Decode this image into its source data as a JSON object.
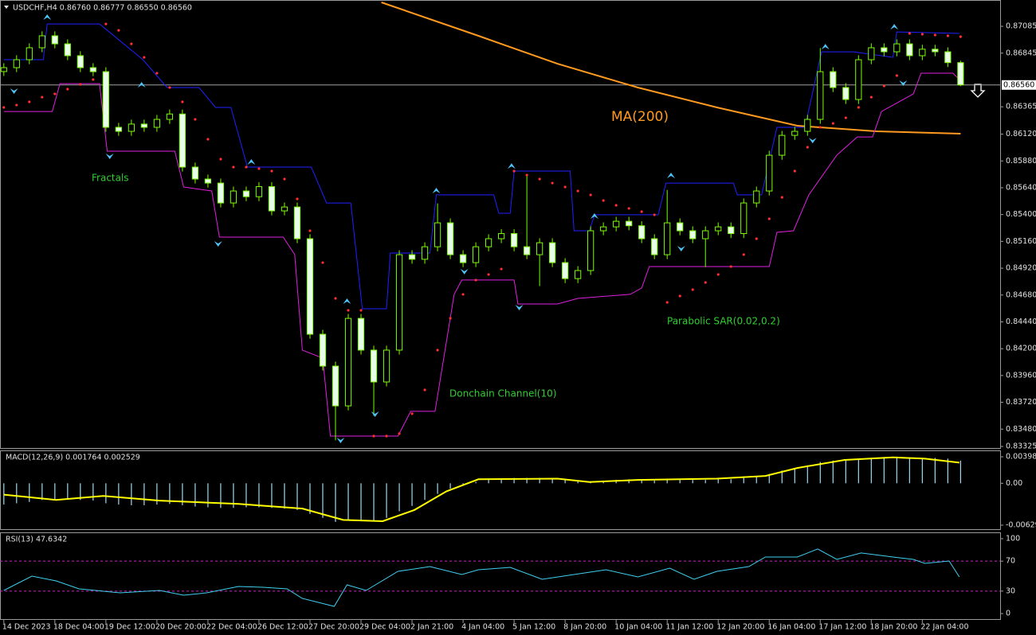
{
  "chart_data": [
    {
      "type": "candlestick",
      "title": "USDCHF,H4 0.86760 0.86777 0.86550 0.86560",
      "up_color": "#000000",
      "down_color": "#e6ffe6",
      "edge_color": "#7cfc00",
      "open": [
        0.8668,
        0.86715,
        0.86786,
        0.86893,
        0.87,
        0.86928,
        0.86822,
        0.86715,
        0.86679,
        0.86181,
        0.86145,
        0.8621,
        0.86181,
        0.86252,
        0.863,
        0.85825,
        0.85718,
        0.85682,
        0.85504,
        0.85611,
        0.8556,
        0.8565,
        0.85433,
        0.85468,
        0.85184,
        0.84329,
        0.84044,
        0.83688,
        0.84471,
        0.84187,
        0.83902,
        0.84187,
        0.85041,
        0.85,
        0.85112,
        0.85326,
        0.85041,
        0.8497,
        0.85112,
        0.85184,
        0.8523,
        0.85112,
        0.85041,
        0.85148,
        0.8497,
        0.84827,
        0.84899,
        0.85255,
        0.8529,
        0.8534,
        0.853,
        0.85184,
        0.85041,
        0.85326,
        0.85255,
        0.85184,
        0.85255,
        0.8529,
        0.8523,
        0.85504,
        0.85611,
        0.85931,
        0.86109,
        0.86145,
        0.86252,
        0.86679,
        0.86537,
        0.8643,
        0.86786,
        0.86893,
        0.86857,
        0.86928,
        0.86822,
        0.8688,
        0.86857,
        0.8676
      ],
      "high": [
        0.86755,
        0.86826,
        0.86933,
        0.8704,
        0.8704,
        0.86968,
        0.86862,
        0.86755,
        0.86719,
        0.86221,
        0.8625,
        0.8625,
        0.86292,
        0.8634,
        0.8634,
        0.85865,
        0.85758,
        0.85722,
        0.85651,
        0.85651,
        0.8569,
        0.8569,
        0.85508,
        0.85508,
        0.85224,
        0.84369,
        0.84084,
        0.84511,
        0.84511,
        0.84227,
        0.84227,
        0.85081,
        0.85081,
        0.85152,
        0.855,
        0.85366,
        0.85081,
        0.85152,
        0.85224,
        0.8527,
        0.8527,
        0.8575,
        0.85188,
        0.85188,
        0.8501,
        0.84939,
        0.85295,
        0.8533,
        0.8538,
        0.8538,
        0.8534,
        0.85224,
        0.8562,
        0.85366,
        0.85295,
        0.85295,
        0.8533,
        0.8533,
        0.85544,
        0.85651,
        0.85971,
        0.86149,
        0.86185,
        0.86292,
        0.8689,
        0.86719,
        0.86577,
        0.86826,
        0.86933,
        0.86933,
        0.86968,
        0.86968,
        0.8692,
        0.8692,
        0.86897,
        0.86777
      ],
      "low": [
        0.8664,
        0.86675,
        0.86746,
        0.86853,
        0.86888,
        0.86782,
        0.86675,
        0.86639,
        0.86141,
        0.86105,
        0.86105,
        0.86141,
        0.86141,
        0.86212,
        0.85785,
        0.85678,
        0.85642,
        0.85464,
        0.85464,
        0.8552,
        0.8552,
        0.85393,
        0.85393,
        0.85144,
        0.84289,
        0.84004,
        0.8338,
        0.83648,
        0.84147,
        0.836,
        0.83862,
        0.84147,
        0.8496,
        0.8496,
        0.85072,
        0.85001,
        0.8493,
        0.8493,
        0.85072,
        0.85144,
        0.85072,
        0.85001,
        0.8476,
        0.8493,
        0.84787,
        0.84787,
        0.84859,
        0.85215,
        0.8525,
        0.8526,
        0.85144,
        0.85001,
        0.85001,
        0.85215,
        0.85144,
        0.8493,
        0.85215,
        0.8519,
        0.8519,
        0.85464,
        0.85571,
        0.85891,
        0.86069,
        0.86105,
        0.86212,
        0.86497,
        0.8639,
        0.8639,
        0.86746,
        0.86817,
        0.86817,
        0.86782,
        0.86782,
        0.86817,
        0.8672,
        0.8655
      ],
      "close": [
        0.86715,
        0.86786,
        0.86893,
        0.87,
        0.86928,
        0.86822,
        0.86715,
        0.86679,
        0.86181,
        0.86145,
        0.8621,
        0.86181,
        0.86252,
        0.863,
        0.85825,
        0.85718,
        0.85682,
        0.85504,
        0.85611,
        0.8556,
        0.8565,
        0.85433,
        0.85468,
        0.85184,
        0.84329,
        0.84044,
        0.83688,
        0.84471,
        0.84187,
        0.83902,
        0.84187,
        0.85041,
        0.85,
        0.85112,
        0.85326,
        0.85041,
        0.8497,
        0.85112,
        0.85184,
        0.8523,
        0.85112,
        0.85041,
        0.85148,
        0.8497,
        0.84827,
        0.84899,
        0.85255,
        0.8529,
        0.8534,
        0.853,
        0.85184,
        0.85041,
        0.85326,
        0.85255,
        0.85184,
        0.85255,
        0.8529,
        0.8523,
        0.85504,
        0.85611,
        0.85931,
        0.86109,
        0.86145,
        0.86252,
        0.86679,
        0.86537,
        0.8643,
        0.86786,
        0.86893,
        0.86857,
        0.86928,
        0.86822,
        0.8688,
        0.86857,
        0.8676,
        0.8656
      ],
      "xlim": [
        -0.3,
        78.1
      ],
      "ylim": [
        0.83311,
        0.87299
      ],
      "yticks": [
        {
          "value": 0.87085,
          "label": "0.87085"
        },
        {
          "value": 0.86845,
          "label": "0.86845"
        },
        {
          "value": 0.86365,
          "label": "0.86365"
        },
        {
          "value": 0.8612,
          "label": "0.86120"
        },
        {
          "value": 0.8588,
          "label": "0.85880"
        },
        {
          "value": 0.8564,
          "label": "0.85640"
        },
        {
          "value": 0.854,
          "label": "0.85400"
        },
        {
          "value": 0.8516,
          "label": "0.85160"
        },
        {
          "value": 0.8492,
          "label": "0.84920"
        },
        {
          "value": 0.8468,
          "label": "0.84680"
        },
        {
          "value": 0.8444,
          "label": "0.84440"
        },
        {
          "value": 0.842,
          "label": "0.84200"
        },
        {
          "value": 0.8396,
          "label": "0.83960"
        },
        {
          "value": 0.8372,
          "label": "0.83720"
        },
        {
          "value": 0.8348,
          "label": "0.83480"
        },
        {
          "value": 0.83325,
          "label": "0.83325"
        }
      ],
      "current_price": {
        "value": 0.8656,
        "label": "0.86560"
      },
      "ma": {
        "label": "MA(200)",
        "color": "#ff9a1f",
        "x": [
          29.6,
          37.2,
          43.4,
          49.7,
          55.9,
          62.2,
          68.4,
          75
        ],
        "values": [
          0.87299,
          0.87,
          0.8675,
          0.86537,
          0.86359,
          0.86195,
          0.86145,
          0.86124
        ]
      },
      "donchian": {
        "label": "Donchain Channel(10)",
        "upper_color": "#2020ff",
        "lower_color": "#e020e0",
        "upper": {
          "x": [
            0,
            3.1,
            3.4,
            7.5,
            10.9,
            12.8,
            15.3,
            16.6,
            17.8,
            19.1,
            24.1,
            25.3,
            27.2,
            28.1,
            30,
            30.3,
            33.4,
            33.9,
            38.4,
            38.8,
            39.7,
            40,
            44.4,
            44.7,
            45.9,
            46.3,
            51.3,
            51.9,
            57.2,
            57.5,
            59.4,
            60.6,
            62.8,
            64.1,
            66.6,
            69.7,
            70,
            74.9
          ],
          "values": [
            0.86786,
            0.86786,
            0.87106,
            0.87106,
            0.86786,
            0.86537,
            0.86537,
            0.86359,
            0.86359,
            0.85825,
            0.85825,
            0.85504,
            0.85504,
            0.84557,
            0.84557,
            0.85056,
            0.85056,
            0.85576,
            0.85576,
            0.85412,
            0.85412,
            0.85789,
            0.85789,
            0.85255,
            0.85255,
            0.85398,
            0.85398,
            0.85682,
            0.85682,
            0.85576,
            0.85576,
            0.86181,
            0.86181,
            0.86857,
            0.86857,
            0.86807,
            0.87035,
            0.87021
          ]
        },
        "lower": {
          "x": [
            0,
            3.8,
            4.4,
            7.5,
            8.1,
            13.4,
            14.1,
            16.3,
            16.9,
            21.9,
            22.8,
            23.4,
            25,
            25.6,
            30.9,
            31.9,
            33.8,
            35.3,
            35.9,
            40,
            40.3,
            43.4,
            45,
            49.1,
            50,
            50.6,
            60,
            60.6,
            61.9,
            63.1,
            65.3,
            66.9,
            68.1,
            68.8,
            71.3,
            71.9,
            74.4,
            74.9
          ],
          "values": [
            0.86323,
            0.86323,
            0.86572,
            0.86572,
            0.85967,
            0.85967,
            0.85647,
            0.85611,
            0.85198,
            0.85198,
            0.85042,
            0.84187,
            0.84116,
            0.83418,
            0.83418,
            0.83639,
            0.83639,
            0.84686,
            0.84814,
            0.84814,
            0.846,
            0.846,
            0.8465,
            0.84686,
            0.84743,
            0.84935,
            0.84935,
            0.85241,
            0.85255,
            0.85576,
            0.85932,
            0.86095,
            0.86095,
            0.86323,
            0.8648,
            0.86665,
            0.86665,
            0.86608
          ]
        }
      },
      "sar": {
        "label": "Parabolic SAR(0.02,0.2)",
        "color": "#ff3030",
        "values": [
          0.86359,
          0.8638,
          0.86409,
          0.86451,
          0.8648,
          0.86523,
          0.86565,
          0.86608,
          0.87106,
          0.87049,
          0.86928,
          0.86807,
          0.86665,
          0.86537,
          0.86409,
          0.86252,
          0.86074,
          0.85896,
          0.85825,
          0.85825,
          0.85811,
          0.85789,
          0.85718,
          0.8554,
          0.85255,
          0.8497,
          0.8465,
          0.84543,
          0.84543,
          0.83418,
          0.83418,
          0.8344,
          0.83618,
          0.83831,
          0.84187,
          0.84472,
          0.84686,
          0.84814,
          0.84864,
          0.84913,
          0.85789,
          0.85754,
          0.85718,
          0.85682,
          0.85647,
          0.85611,
          0.85576,
          0.85526,
          0.85483,
          0.85455,
          0.85426,
          0.85398,
          0.84614,
          0.84671,
          0.84728,
          0.84792,
          0.84864,
          0.84935,
          0.85042,
          0.85184,
          0.85362,
          0.85554,
          0.85789,
          0.86003,
          0.86181,
          0.86216,
          0.86266,
          0.86359,
          0.86451,
          0.86551,
          0.86644,
          0.87021,
          0.87014,
          0.87007,
          0.87,
          0.86992
        ]
      },
      "fractals": {
        "label": "Fractals",
        "color": "#4fc3f7",
        "up": {
          "x": [
            3.4,
            10.8,
            19.4,
            26.9,
            33.9,
            39.8,
            46.3,
            52.3,
            64.4,
            69.8
          ],
          "values": [
            0.87192,
            0.86587,
            0.85896,
            0.8465,
            0.8564,
            0.8586,
            0.85412,
            0.85775,
            0.86928,
            0.87106
          ]
        },
        "down": {
          "x": [
            0.8,
            8.3,
            16.8,
            26.4,
            29.1,
            36.1,
            40.4,
            53.1,
            63.4,
            70.5
          ],
          "values": [
            0.8648,
            0.85896,
            0.85113,
            0.83354,
            0.83589,
            0.84864,
            0.84543,
            0.8507,
            0.86038,
            0.86551
          ]
        }
      }
    },
    {
      "type": "macd",
      "title": "MACD(12,26,9) 0.001764 0.002529",
      "color": "#a8d8f0",
      "signal_color": "#ffff00",
      "values": [
        -0.0032,
        -0.003,
        -0.0028,
        -0.0025,
        -0.0024,
        -0.0024,
        -0.0025,
        -0.0026,
        -0.003,
        -0.0032,
        -0.0033,
        -0.0033,
        -0.0032,
        -0.0031,
        -0.0033,
        -0.0035,
        -0.0036,
        -0.0037,
        -0.0037,
        -0.0036,
        -0.0036,
        -0.0037,
        -0.0038,
        -0.004,
        -0.0046,
        -0.0052,
        -0.0058,
        -0.0056,
        -0.0055,
        -0.0056,
        -0.0052,
        -0.0042,
        -0.0034,
        -0.0025,
        -0.0016,
        -0.0008,
        -0.0002,
        0.0002,
        0.0005,
        0.0007,
        0.0008,
        0.0008,
        0.0008,
        0.0007,
        0.0005,
        0.0003,
        0.0003,
        0.0004,
        0.0005,
        0.0006,
        0.0005,
        0.0004,
        0.0005,
        0.0005,
        0.0005,
        0.0005,
        0.0006,
        0.0006,
        0.0008,
        0.001,
        0.0014,
        0.0019,
        0.0023,
        0.0027,
        0.0032,
        0.0034,
        0.0034,
        0.0036,
        0.0038,
        0.0039,
        0.004,
        0.0039,
        0.0038,
        0.0038,
        0.0037,
        0.0034
      ],
      "signal": {
        "x": [
          0,
          4.1,
          7.8,
          12.2,
          18.4,
          23.4,
          26.6,
          29.7,
          32.2,
          34.7,
          37.2,
          43.4,
          45.9,
          49.7,
          55.9,
          59.7,
          62.2,
          65.9,
          69.7,
          72.2,
          74.9
        ],
        "values": [
          -0.0017,
          -0.0025,
          -0.0019,
          -0.0026,
          -0.0031,
          -0.0038,
          -0.0055,
          -0.0057,
          -0.004,
          -0.0012,
          0.0006,
          0.0007,
          0.0002,
          0.0005,
          0.0007,
          0.0011,
          0.0023,
          0.0035,
          0.0039,
          0.0037,
          0.0031
        ]
      },
      "xlim": [
        -0.3,
        78.1
      ],
      "ylim": [
        -0.006889,
        0.004817
      ],
      "yticks": [
        0.003981,
        {
          "value": 0,
          "label": "0.00"
        },
        -0.006292
      ]
    },
    {
      "type": "line",
      "title": "RSI(13) 47.6342",
      "color": "#40d0f0",
      "level_color": "#d020d0",
      "x": [
        0,
        2.2,
        4.1,
        5.9,
        9.1,
        12.2,
        14.1,
        15.9,
        18.4,
        20.3,
        22.2,
        23.4,
        25.9,
        26.9,
        28.4,
        30.9,
        33.4,
        35.9,
        37.2,
        39.7,
        42.2,
        44.7,
        47.2,
        49.7,
        52.2,
        54.1,
        55.9,
        58.4,
        59.7,
        62.2,
        63.8,
        65.3,
        67.2,
        69.7,
        71.3,
        72.2,
        74.1,
        74.9
      ],
      "values": [
        30.9,
        50.0,
        43.6,
        33.0,
        27.7,
        30.9,
        24.5,
        27.7,
        36.2,
        35.1,
        33.0,
        20.2,
        9.6,
        38.3,
        30.9,
        56.4,
        62.8,
        52.1,
        58.5,
        61.7,
        45.7,
        52.1,
        58.5,
        48.9,
        60.6,
        45.7,
        56.4,
        62.8,
        75.5,
        75.5,
        86.2,
        72.3,
        80.9,
        75.5,
        72.3,
        67.0,
        70.2,
        48.9
      ],
      "levels": [
        70,
        30
      ],
      "xlim": [
        -0.3,
        78.1
      ],
      "ylim": [
        -7.4,
        107.4
      ],
      "yticks": [
        100,
        70,
        30,
        0
      ],
      "xticks": [
        {
          "value": 0,
          "label": "14 Dec 2023"
        },
        {
          "value": 4,
          "label": "18 Dec 04:00"
        },
        {
          "value": 8,
          "label": "19 Dec 12:00"
        },
        {
          "value": 12,
          "label": "20 Dec 20:00"
        },
        {
          "value": 16,
          "label": "22 Dec 04:00"
        },
        {
          "value": 20,
          "label": "26 Dec 12:00"
        },
        {
          "value": 24,
          "label": "27 Dec 20:00"
        },
        {
          "value": 28,
          "label": "29 Dec 04:00"
        },
        {
          "value": 32,
          "label": "2 Jan 21:00"
        },
        {
          "value": 36,
          "label": "4 Jan 04:00"
        },
        {
          "value": 40,
          "label": "5 Jan 12:00"
        },
        {
          "value": 44,
          "label": "8 Jan 20:00"
        },
        {
          "value": 48,
          "label": "10 Jan 04:00"
        },
        {
          "value": 52,
          "label": "11 Jan 12:00"
        },
        {
          "value": 56,
          "label": "12 Jan 20:00"
        },
        {
          "value": 60,
          "label": "16 Jan 04:00"
        },
        {
          "value": 64,
          "label": "17 Jan 12:00"
        },
        {
          "value": 68,
          "label": "18 Jan 20:00"
        },
        {
          "value": 72,
          "label": "22 Jan 04:00"
        }
      ]
    }
  ]
}
